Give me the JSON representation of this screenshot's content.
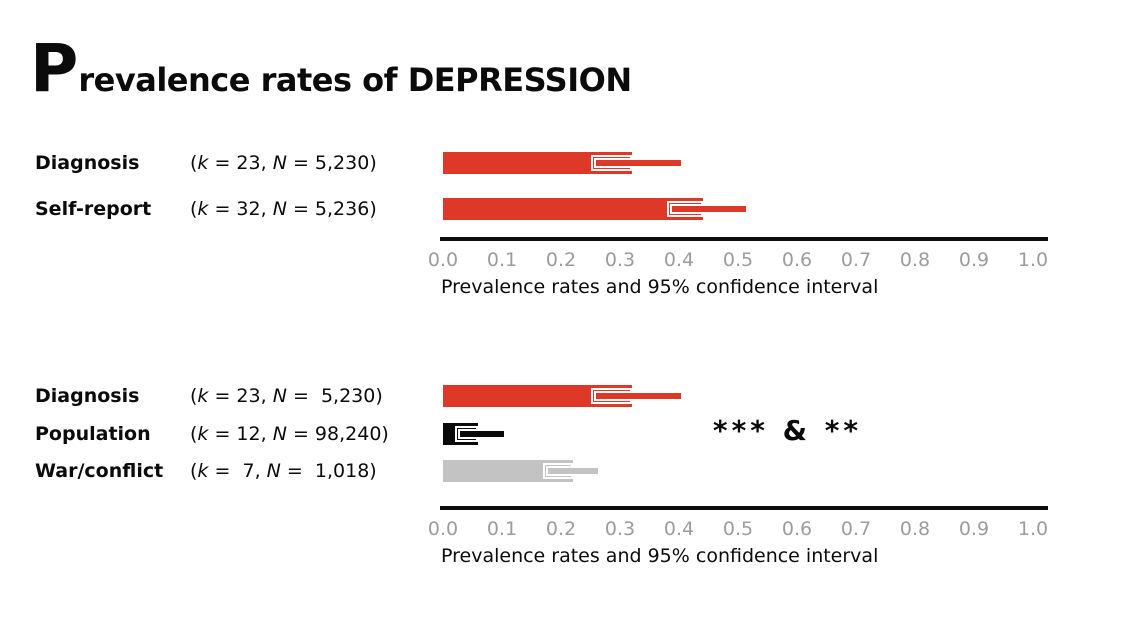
{
  "page": {
    "background": "#ffffff"
  },
  "title": {
    "initial": "P",
    "rest": "revalence rates of DEPRESSION",
    "full": "Prevalence rates of DEPRESSION"
  },
  "meta_labels": {
    "k": "k",
    "N": "N"
  },
  "colors": {
    "bar_red": "#de3928",
    "bar_black": "#0a0a0a",
    "bar_gray": "#c3c3c3",
    "marker_outline": "#ffffff",
    "axis_line": "#0d0d0d",
    "tick_text": "#9c9c9c",
    "text": "#0b0b0b"
  },
  "chart_data": [
    {
      "type": "bar",
      "orientation": "horizontal",
      "title": "Prevalence rates of DEPRESSION",
      "xlabel": "Prevalence rates and 95% confidence interval",
      "xlim": [
        0,
        1
      ],
      "x_ticks": [
        "0.0",
        "0.1",
        "0.2",
        "0.3",
        "0.4",
        "0.5",
        "0.6",
        "0.7",
        "0.8",
        "0.9",
        "1.0"
      ],
      "grid": false,
      "legend": "none",
      "series": [
        {
          "label": "Diagnosis",
          "k": "23",
          "N": "5,230",
          "value": 0.32,
          "ci_low": 0.25,
          "ci_high": 0.4,
          "color": "#de3928"
        },
        {
          "label": "Self-report",
          "k": "32",
          "N": "5,236",
          "value": 0.44,
          "ci_low": 0.38,
          "ci_high": 0.51,
          "color": "#de3928"
        }
      ]
    },
    {
      "type": "bar",
      "orientation": "horizontal",
      "xlabel": "Prevalence rates and 95% confidence interval",
      "xlim": [
        0,
        1
      ],
      "x_ticks": [
        "0.0",
        "0.1",
        "0.2",
        "0.3",
        "0.4",
        "0.5",
        "0.6",
        "0.7",
        "0.8",
        "0.9",
        "1.0"
      ],
      "grid": false,
      "legend": "none",
      "annotation": "*** & **",
      "series": [
        {
          "label": "Diagnosis",
          "k": "23",
          "N": " 5,230",
          "value": 0.32,
          "ci_low": 0.25,
          "ci_high": 0.4,
          "color": "#de3928"
        },
        {
          "label": "Population",
          "k": "12",
          "N": "98,240",
          "value": 0.06,
          "ci_low": 0.02,
          "ci_high": 0.1,
          "color": "#0a0a0a"
        },
        {
          "label": "War/conflict",
          "k": " 7",
          "N": " 1,018",
          "value": 0.22,
          "ci_low": 0.17,
          "ci_high": 0.26,
          "color": "#c3c3c3"
        }
      ]
    }
  ]
}
